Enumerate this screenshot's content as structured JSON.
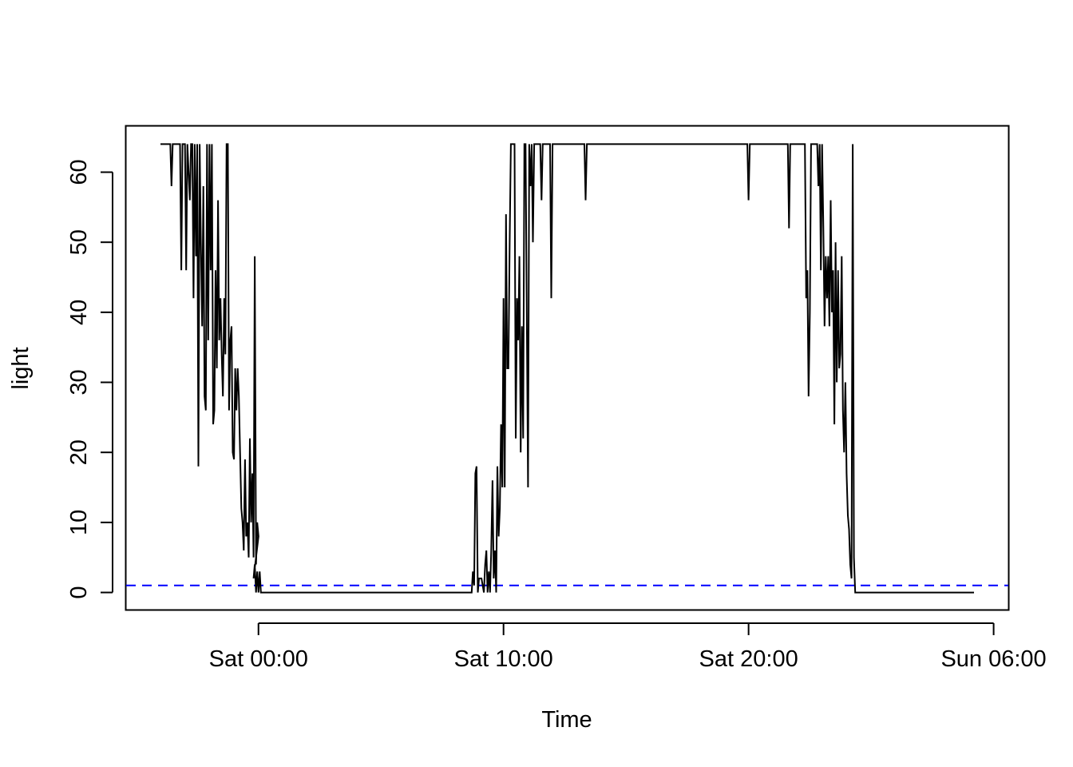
{
  "chart_data": {
    "type": "line",
    "title": "",
    "xlabel": "Time",
    "ylabel": "light",
    "x_unit": "hours relative to Sat 00:00",
    "xlim": [
      -5.4,
      30.6
    ],
    "ylim": [
      -2.56,
      66.56
    ],
    "x_ticks": [
      {
        "value": 0,
        "label": "Sat 00:00"
      },
      {
        "value": 10,
        "label": "Sat 10:00"
      },
      {
        "value": 20,
        "label": "Sat 20:00"
      },
      {
        "value": 30,
        "label": "Sun 06:00"
      }
    ],
    "y_ticks": [
      {
        "value": 0,
        "label": "0"
      },
      {
        "value": 10,
        "label": "10"
      },
      {
        "value": 20,
        "label": "20"
      },
      {
        "value": 30,
        "label": "30"
      },
      {
        "value": 40,
        "label": "40"
      },
      {
        "value": 50,
        "label": "50"
      },
      {
        "value": 60,
        "label": "60"
      }
    ],
    "reference_line": {
      "y": 1,
      "color": "#0000ff",
      "style": "dashed"
    },
    "series": [
      {
        "color": "#000000",
        "points": [
          [
            -4.0,
            64
          ],
          [
            -3.6,
            64
          ],
          [
            -3.55,
            58
          ],
          [
            -3.5,
            64
          ],
          [
            -3.2,
            64
          ],
          [
            -3.15,
            46
          ],
          [
            -3.1,
            64
          ],
          [
            -3.0,
            64
          ],
          [
            -2.95,
            46
          ],
          [
            -2.9,
            64
          ],
          [
            -2.8,
            56
          ],
          [
            -2.75,
            64
          ],
          [
            -2.7,
            64
          ],
          [
            -2.65,
            42
          ],
          [
            -2.6,
            64
          ],
          [
            -2.55,
            48
          ],
          [
            -2.5,
            64
          ],
          [
            -2.45,
            18
          ],
          [
            -2.4,
            64
          ],
          [
            -2.35,
            50
          ],
          [
            -2.3,
            38
          ],
          [
            -2.25,
            58
          ],
          [
            -2.2,
            28
          ],
          [
            -2.15,
            26
          ],
          [
            -2.1,
            64
          ],
          [
            -2.05,
            36
          ],
          [
            -2.0,
            64
          ],
          [
            -1.95,
            46
          ],
          [
            -1.9,
            64
          ],
          [
            -1.85,
            24
          ],
          [
            -1.8,
            26
          ],
          [
            -1.75,
            46
          ],
          [
            -1.7,
            32
          ],
          [
            -1.65,
            56
          ],
          [
            -1.6,
            36
          ],
          [
            -1.55,
            42
          ],
          [
            -1.5,
            34
          ],
          [
            -1.45,
            28
          ],
          [
            -1.4,
            42
          ],
          [
            -1.35,
            34
          ],
          [
            -1.3,
            64
          ],
          [
            -1.25,
            64
          ],
          [
            -1.2,
            26
          ],
          [
            -1.15,
            36
          ],
          [
            -1.1,
            38
          ],
          [
            -1.05,
            20
          ],
          [
            -1.0,
            19
          ],
          [
            -0.95,
            32
          ],
          [
            -0.9,
            26
          ],
          [
            -0.85,
            32
          ],
          [
            -0.8,
            28
          ],
          [
            -0.75,
            20
          ],
          [
            -0.7,
            12
          ],
          [
            -0.65,
            10
          ],
          [
            -0.6,
            6
          ],
          [
            -0.55,
            19
          ],
          [
            -0.5,
            8
          ],
          [
            -0.45,
            10
          ],
          [
            -0.4,
            5
          ],
          [
            -0.35,
            22
          ],
          [
            -0.3,
            10
          ],
          [
            -0.25,
            17
          ],
          [
            -0.2,
            5
          ],
          [
            -0.15,
            48
          ],
          [
            -0.1,
            4
          ],
          [
            -0.05,
            10
          ],
          [
            0.0,
            8
          ],
          [
            -0.2,
            2
          ],
          [
            -0.15,
            4
          ],
          [
            -0.1,
            0
          ],
          [
            -0.05,
            3
          ],
          [
            0.0,
            0
          ],
          [
            0.05,
            3
          ],
          [
            0.1,
            0
          ],
          [
            1.0,
            0
          ],
          [
            3.0,
            0
          ],
          [
            5.0,
            0
          ],
          [
            7.0,
            0
          ],
          [
            8.0,
            0
          ],
          [
            8.7,
            0
          ],
          [
            8.75,
            3
          ],
          [
            8.8,
            1
          ],
          [
            8.85,
            17
          ],
          [
            8.9,
            18
          ],
          [
            8.95,
            0
          ],
          [
            9.0,
            2
          ],
          [
            9.1,
            2
          ],
          [
            9.2,
            0
          ],
          [
            9.25,
            4
          ],
          [
            9.3,
            6
          ],
          [
            9.35,
            0
          ],
          [
            9.4,
            3
          ],
          [
            9.45,
            0
          ],
          [
            9.5,
            6
          ],
          [
            9.55,
            16
          ],
          [
            9.6,
            2
          ],
          [
            9.65,
            6
          ],
          [
            9.7,
            0
          ],
          [
            9.75,
            18
          ],
          [
            9.8,
            8
          ],
          [
            9.85,
            12
          ],
          [
            9.9,
            24
          ],
          [
            9.95,
            15
          ],
          [
            10.0,
            42
          ],
          [
            10.05,
            15
          ],
          [
            10.1,
            54
          ],
          [
            10.15,
            32
          ],
          [
            10.2,
            32
          ],
          [
            10.25,
            50
          ],
          [
            10.3,
            64
          ],
          [
            10.45,
            64
          ],
          [
            10.5,
            22
          ],
          [
            10.55,
            42
          ],
          [
            10.6,
            36
          ],
          [
            10.65,
            48
          ],
          [
            10.7,
            20
          ],
          [
            10.75,
            38
          ],
          [
            10.8,
            22
          ],
          [
            10.85,
            64
          ],
          [
            10.9,
            64
          ],
          [
            11.0,
            15
          ],
          [
            11.05,
            64
          ],
          [
            11.1,
            58
          ],
          [
            11.15,
            64
          ],
          [
            11.2,
            50
          ],
          [
            11.25,
            64
          ],
          [
            11.5,
            64
          ],
          [
            11.55,
            56
          ],
          [
            11.6,
            64
          ],
          [
            11.9,
            64
          ],
          [
            11.95,
            42
          ],
          [
            12.0,
            64
          ],
          [
            13.3,
            64
          ],
          [
            13.35,
            56
          ],
          [
            13.4,
            64
          ],
          [
            16.0,
            64
          ],
          [
            19.0,
            64
          ],
          [
            19.95,
            64
          ],
          [
            20.0,
            56
          ],
          [
            20.05,
            64
          ],
          [
            21.6,
            64
          ],
          [
            21.65,
            52
          ],
          [
            21.7,
            64
          ],
          [
            22.3,
            64
          ],
          [
            22.35,
            42
          ],
          [
            22.4,
            46
          ],
          [
            22.45,
            28
          ],
          [
            22.5,
            40
          ],
          [
            22.55,
            64
          ],
          [
            22.8,
            64
          ],
          [
            22.85,
            58
          ],
          [
            22.9,
            64
          ],
          [
            22.95,
            46
          ],
          [
            23.0,
            64
          ],
          [
            23.05,
            52
          ],
          [
            23.1,
            38
          ],
          [
            23.15,
            48
          ],
          [
            23.2,
            42
          ],
          [
            23.25,
            48
          ],
          [
            23.3,
            38
          ],
          [
            23.35,
            56
          ],
          [
            23.4,
            40
          ],
          [
            23.45,
            46
          ],
          [
            23.5,
            24
          ],
          [
            23.55,
            50
          ],
          [
            23.6,
            30
          ],
          [
            23.65,
            46
          ],
          [
            23.7,
            32
          ],
          [
            23.75,
            34
          ],
          [
            23.8,
            48
          ],
          [
            23.85,
            26
          ],
          [
            23.9,
            20
          ],
          [
            23.95,
            30
          ],
          [
            24.0,
            17
          ],
          [
            24.05,
            11
          ],
          [
            24.1,
            9
          ],
          [
            24.15,
            4
          ],
          [
            24.2,
            2
          ],
          [
            24.25,
            64
          ],
          [
            24.3,
            5
          ],
          [
            24.35,
            0
          ],
          [
            25.0,
            0
          ],
          [
            27.0,
            0
          ],
          [
            28.0,
            0
          ],
          [
            29.2,
            0
          ]
        ]
      }
    ]
  }
}
